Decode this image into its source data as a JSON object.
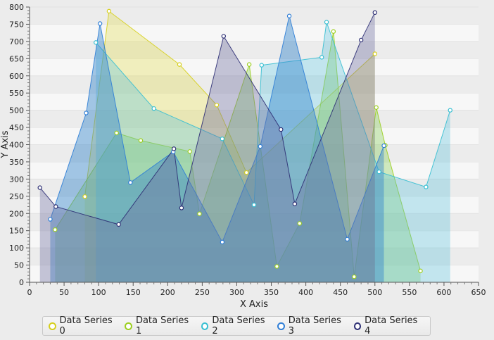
{
  "chart_data": {
    "type": "area",
    "xlabel": "X Axis",
    "ylabel": "Y Axis",
    "xlim": [
      0,
      650
    ],
    "ylim": [
      0,
      800
    ],
    "xticks": [
      0,
      50,
      100,
      150,
      200,
      250,
      300,
      350,
      400,
      450,
      500,
      550,
      600,
      650
    ],
    "yticks": [
      0,
      50,
      100,
      150,
      200,
      250,
      300,
      350,
      400,
      450,
      500,
      550,
      600,
      650,
      700,
      750,
      800
    ],
    "grid": "horizontal alternating bands",
    "legend_position": "bottom",
    "series": [
      {
        "name": "Data Series 0",
        "color": "#d6cf1d",
        "fill": "rgba(226,221,80,0.35)",
        "points": [
          [
            80,
            249
          ],
          [
            115,
            788
          ],
          [
            217,
            633
          ],
          [
            271,
            515
          ],
          [
            314,
            319
          ],
          [
            500,
            664
          ]
        ]
      },
      {
        "name": "Data Series 1",
        "color": "#9ccf1f",
        "fill": "rgba(128,202,80,0.35)",
        "points": [
          [
            37,
            153
          ],
          [
            126,
            434
          ],
          [
            161,
            412
          ],
          [
            232,
            380
          ],
          [
            246,
            199
          ],
          [
            318,
            633
          ],
          [
            358,
            46
          ],
          [
            391,
            171
          ],
          [
            440,
            729
          ],
          [
            470,
            16
          ],
          [
            502,
            508
          ],
          [
            515,
            398
          ],
          [
            566,
            33
          ]
        ]
      },
      {
        "name": "Data Series 2",
        "color": "#37bfd2",
        "fill": "rgba(95,196,220,0.35)",
        "points": [
          [
            96,
            697
          ],
          [
            180,
            505
          ],
          [
            279,
            417
          ],
          [
            325,
            225
          ],
          [
            336,
            631
          ],
          [
            423,
            654
          ],
          [
            430,
            756
          ],
          [
            506,
            321
          ],
          [
            574,
            277
          ],
          [
            609,
            500
          ]
        ]
      },
      {
        "name": "Data Series 3",
        "color": "#2f7ed6",
        "fill": "rgba(55,135,205,0.45)",
        "points": [
          [
            30,
            183
          ],
          [
            82,
            492
          ],
          [
            102,
            752
          ],
          [
            146,
            290
          ],
          [
            208,
            379
          ],
          [
            279,
            117
          ],
          [
            334,
            395
          ],
          [
            376,
            774
          ],
          [
            460,
            125
          ],
          [
            513,
            397
          ]
        ]
      },
      {
        "name": "Data Series 4",
        "color": "#2d2f74",
        "fill": "rgba(110,110,160,0.38)",
        "points": [
          [
            15,
            275
          ],
          [
            38,
            220
          ],
          [
            129,
            168
          ],
          [
            209,
            388
          ],
          [
            220,
            216
          ],
          [
            281,
            715
          ],
          [
            364,
            444
          ],
          [
            384,
            228
          ],
          [
            480,
            704
          ],
          [
            500,
            784
          ]
        ]
      }
    ]
  }
}
